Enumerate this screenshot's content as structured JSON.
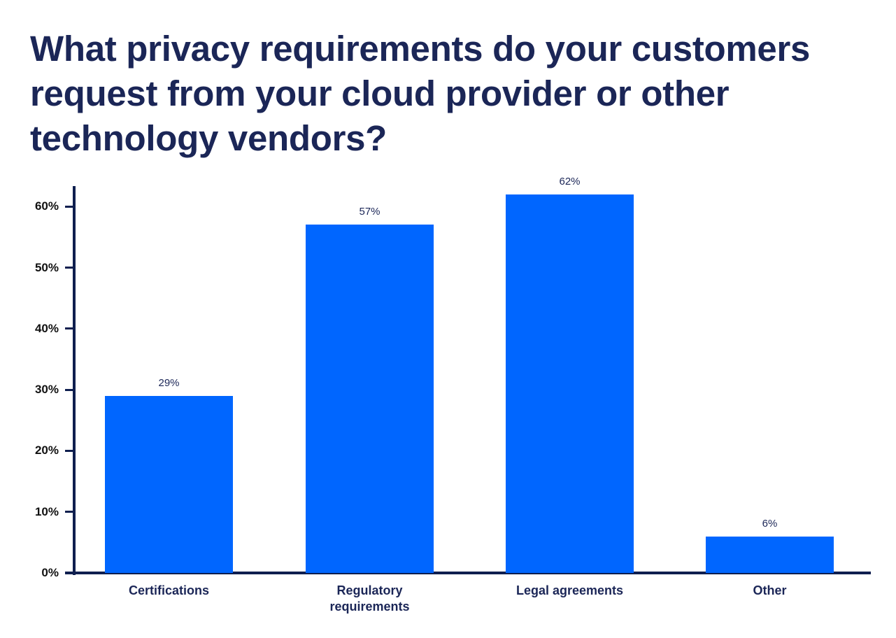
{
  "chart_data": {
    "type": "bar",
    "title": "What privacy requirements do your customers request from your cloud provider or other technology vendors?",
    "categories": [
      "Certifications",
      "Regulatory requirements",
      "Legal agreements",
      "Other"
    ],
    "values": [
      29,
      57,
      62,
      6
    ],
    "value_labels": [
      "29%",
      "57%",
      "62%",
      "6%"
    ],
    "xlabel": "",
    "ylabel": "",
    "ylim": [
      0,
      63
    ],
    "yticks": [
      "0%",
      "10%",
      "20%",
      "30%",
      "40%",
      "50%",
      "60%"
    ],
    "grid": false,
    "legend": null,
    "colors": {
      "bar": "#0066ff",
      "axis": "#0f1f4f",
      "title": "#1b2657"
    }
  },
  "title_lines": [
    "What privacy requirements do your customers",
    "request from your cloud provider or other",
    "technology vendors?"
  ],
  "category_lines": [
    [
      "Certifications"
    ],
    [
      "Regulatory",
      "requirements"
    ],
    [
      "Legal agreements"
    ],
    [
      "Other"
    ]
  ]
}
